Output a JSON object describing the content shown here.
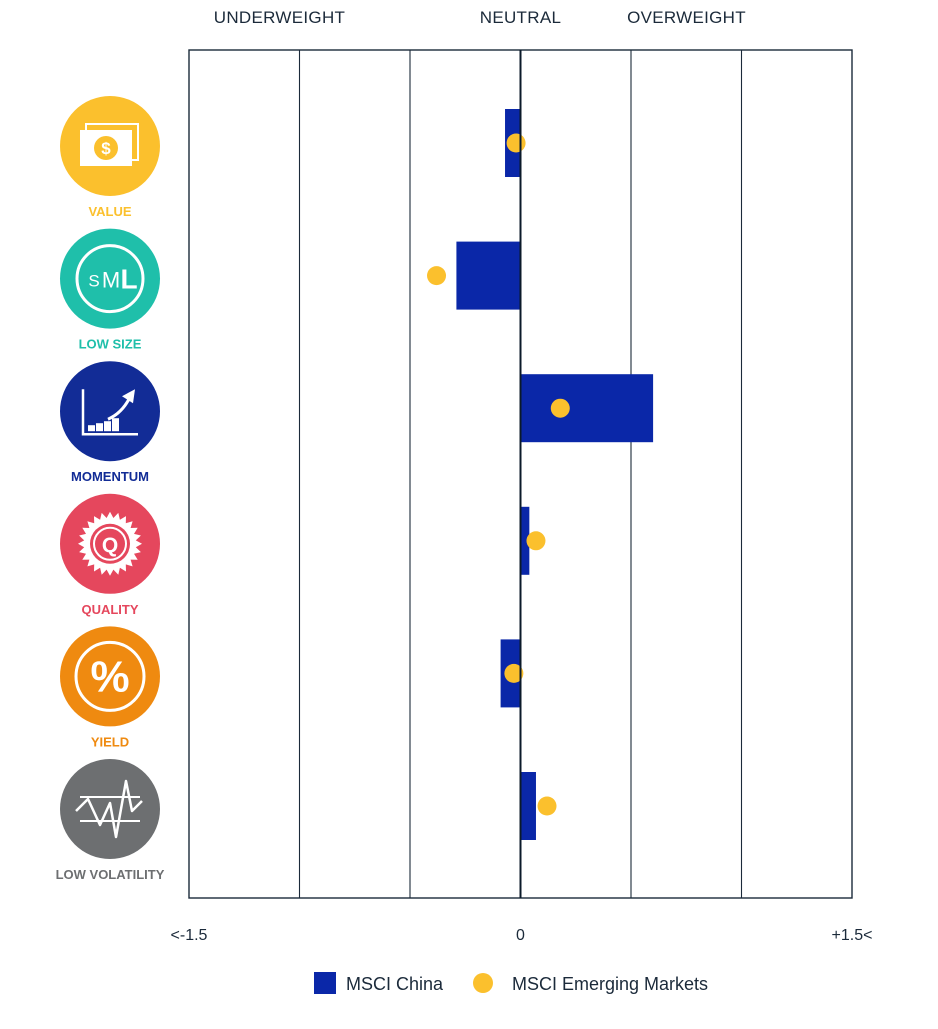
{
  "chart_data": {
    "type": "bar",
    "orientation": "horizontal",
    "zone_labels": [
      "UNDERWEIGHT",
      "NEUTRAL",
      "OVERWEIGHT"
    ],
    "categories": [
      "VALUE",
      "LOW SIZE",
      "MOMENTUM",
      "QUALITY",
      "YIELD",
      "LOW VOLATILITY"
    ],
    "category_colors": [
      "#fbc02d",
      "#1fbfaa",
      "#122c96",
      "#e5475d",
      "#ef8a10",
      "#6d6f71"
    ],
    "category_icons": [
      "money-icon",
      "size-sml-icon",
      "momentum-chart-icon",
      "quality-badge-icon",
      "percent-icon",
      "volatility-icon"
    ],
    "icon_text": {
      "value": "$",
      "size_small": "S",
      "size_medium": "M",
      "size_large": "L",
      "quality": "Q",
      "yield": "%"
    },
    "series": [
      {
        "name": "MSCI China",
        "kind": "bar",
        "color": "#0a27a8",
        "values": [
          -0.07,
          -0.29,
          0.6,
          0.04,
          -0.09,
          0.07
        ]
      },
      {
        "name": "MSCI Emerging Markets",
        "kind": "dot",
        "color": "#fbc02d",
        "values": [
          -0.02,
          -0.38,
          0.18,
          0.07,
          -0.03,
          0.12
        ]
      }
    ],
    "xlim": [
      -1.5,
      1.5
    ],
    "grid_ticks": [
      -1.5,
      -1.0,
      -0.5,
      0,
      0.5,
      1.0,
      1.5
    ],
    "tick_labels": [
      {
        "value": -1.5,
        "text": "<-1.5"
      },
      {
        "value": 0,
        "text": "0"
      },
      {
        "value": 1.5,
        "text": "+1.5<"
      }
    ],
    "grid": true,
    "legend_position": "bottom-center"
  }
}
